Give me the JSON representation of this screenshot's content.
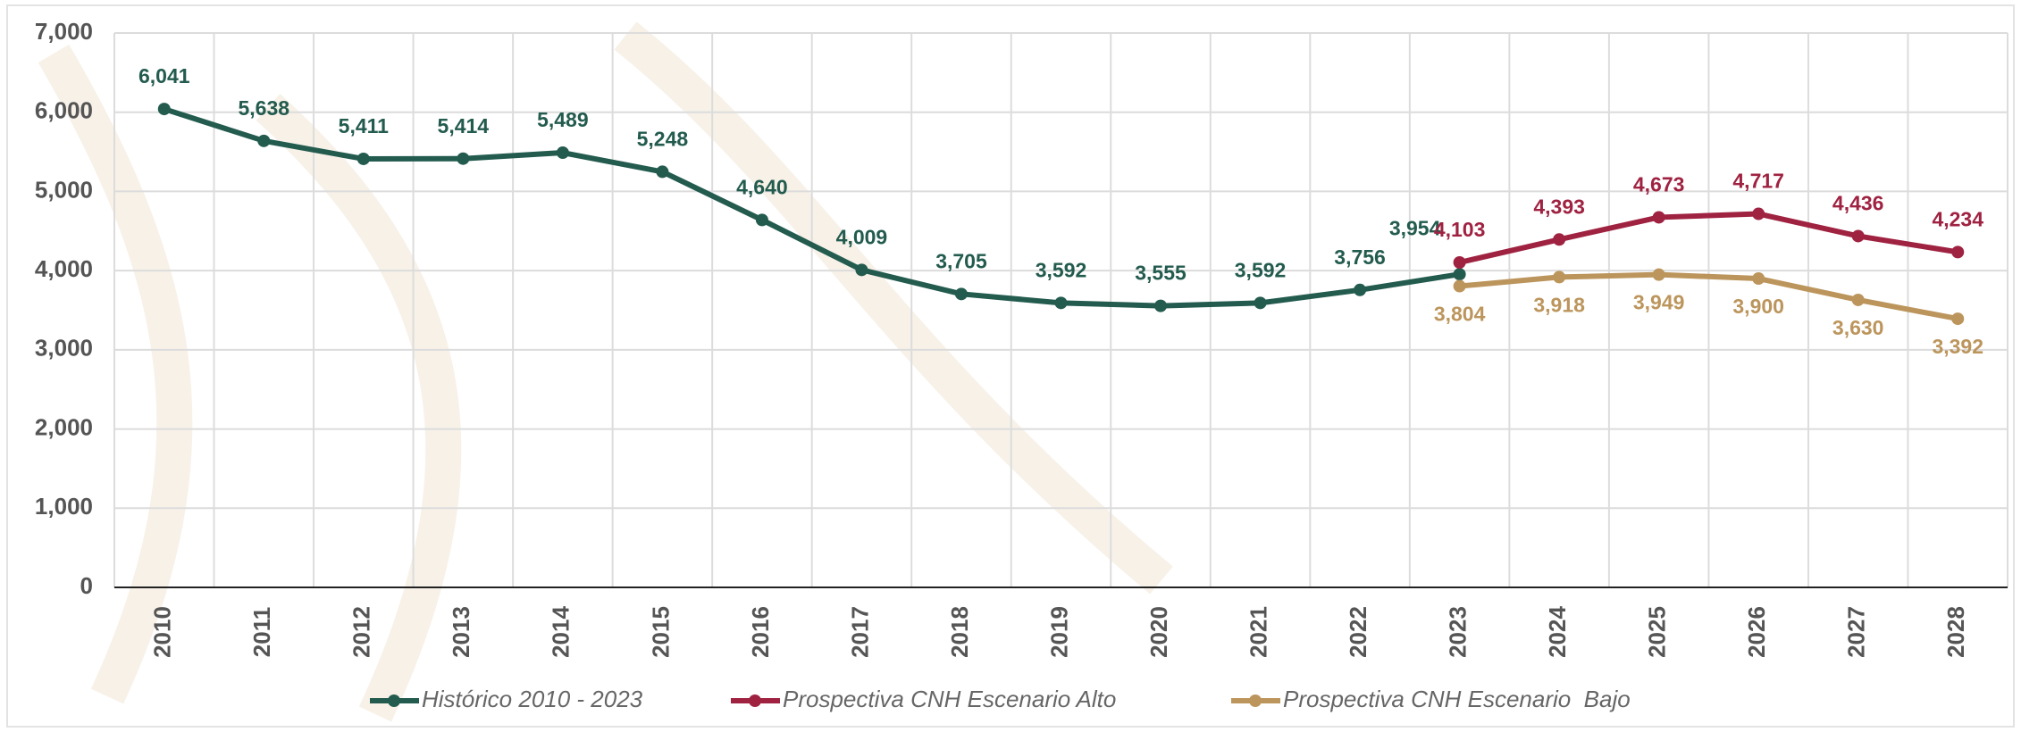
{
  "chart_data": {
    "type": "line",
    "categories": [
      "2010",
      "2011",
      "2012",
      "2013",
      "2014",
      "2015",
      "2016",
      "2017",
      "2018",
      "2019",
      "2020",
      "2021",
      "2022",
      "2023",
      "2024",
      "2025",
      "2026",
      "2027",
      "2028"
    ],
    "series": [
      {
        "name": "Histórico 2010 - 2023",
        "color": "#235b4e",
        "values": [
          6041,
          5638,
          5411,
          5414,
          5489,
          5248,
          4640,
          4009,
          3705,
          3592,
          3555,
          3592,
          3756,
          3954,
          null,
          null,
          null,
          null,
          null
        ],
        "value_labels": [
          "6,041",
          "5,638",
          "5,411",
          "5,414",
          "5,489",
          "5,248",
          "4,640",
          "4,009",
          "3,705",
          "3,592",
          "3,555",
          "3,592",
          "3,756",
          "3,954",
          null,
          null,
          null,
          null,
          null
        ]
      },
      {
        "name": "Prospectiva CNH Escenario Alto",
        "color": "#9f2241",
        "values": [
          null,
          null,
          null,
          null,
          null,
          null,
          null,
          null,
          null,
          null,
          null,
          null,
          null,
          4103,
          4393,
          4673,
          4717,
          4436,
          4234
        ],
        "value_labels": [
          null,
          null,
          null,
          null,
          null,
          null,
          null,
          null,
          null,
          null,
          null,
          null,
          null,
          "4,103",
          "4,393",
          "4,673",
          "4,717",
          "4,436",
          "4,234"
        ]
      },
      {
        "name": "Prospectiva CNH Escenario  Bajo",
        "color": "#bc955c",
        "values": [
          null,
          null,
          null,
          null,
          null,
          null,
          null,
          null,
          null,
          null,
          null,
          null,
          null,
          3804,
          3918,
          3949,
          3900,
          3630,
          3392
        ],
        "value_labels": [
          null,
          null,
          null,
          null,
          null,
          null,
          null,
          null,
          null,
          null,
          null,
          null,
          null,
          "3,804",
          "3,918",
          "3,949",
          "3,900",
          "3,630",
          "3,392"
        ]
      }
    ],
    "ylim": [
      0,
      7000
    ],
    "yticks": [
      0,
      {
        "value": 1000,
        "label": "1,000"
      },
      {
        "value": 2000,
        "label": "2,000"
      },
      {
        "value": 3000,
        "label": "3,000"
      },
      {
        "value": 4000,
        "label": "4,000"
      },
      {
        "value": 5000,
        "label": "5,000"
      },
      {
        "value": 6000,
        "label": "6,000"
      },
      {
        "value": 7000,
        "label": "7,000"
      }
    ],
    "grid": true,
    "legend": "bottom"
  }
}
